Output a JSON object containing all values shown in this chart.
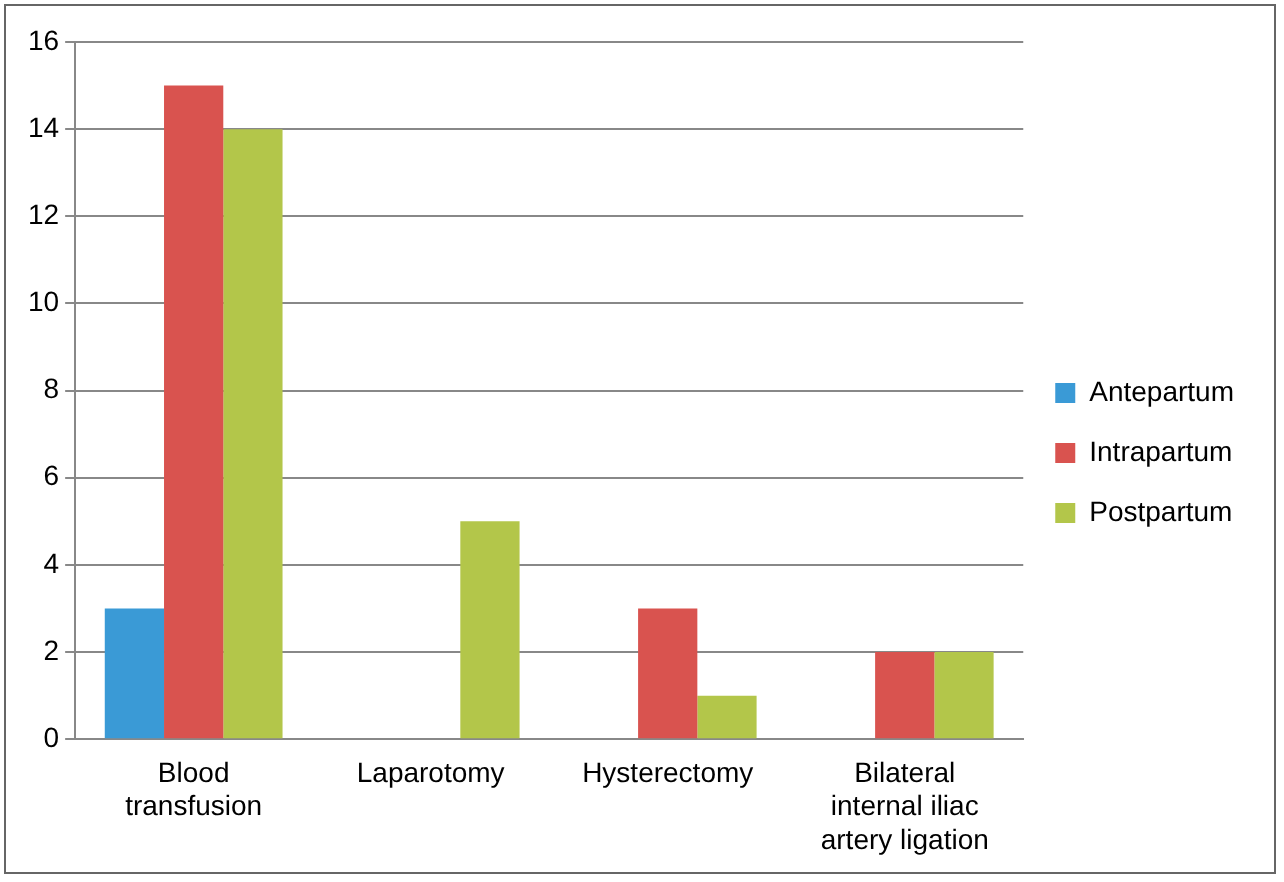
{
  "chart_data": {
    "type": "bar",
    "categories": [
      "Blood transfusion",
      "Laparotomy",
      "Hysterectomy",
      "Bilateral internal iliac artery ligation"
    ],
    "series": [
      {
        "name": "Antepartum",
        "color": "#3a9ad6",
        "values": [
          3,
          0,
          0,
          0
        ]
      },
      {
        "name": "Intrapartum",
        "color": "#d9534f",
        "values": [
          15,
          0,
          3,
          2
        ]
      },
      {
        "name": "Postpartum",
        "color": "#b3c64a",
        "values": [
          14,
          5,
          1,
          2
        ]
      }
    ],
    "ylim": [
      0,
      16
    ],
    "yticks": [
      0,
      2,
      4,
      6,
      8,
      10,
      12,
      14,
      16
    ],
    "grid": "y",
    "legend": "right"
  }
}
